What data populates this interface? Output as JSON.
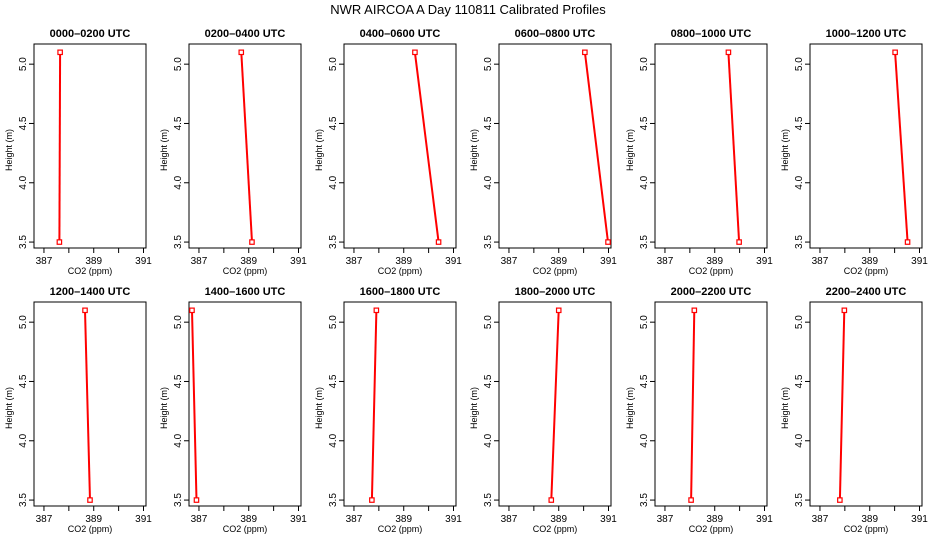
{
  "title": "NWR AIRCOA A  Day 110811  Calibrated Profiles",
  "colors": {
    "series": "#ff0000",
    "axis": "#000000",
    "background": "#ffffff"
  },
  "chart_data": [
    {
      "type": "line",
      "title": "0000–0200 UTC",
      "xlabel": "CO2 (ppm)",
      "ylabel": "Height (m)",
      "xlim": [
        386.6,
        391.1
      ],
      "ylim": [
        3.45,
        5.17
      ],
      "xticks": [
        "387",
        "389",
        "391"
      ],
      "yticks": [
        "3.5",
        "4.0",
        "4.5",
        "5.0"
      ],
      "grid": false,
      "x": [
        387.65,
        387.62
      ],
      "y": [
        5.1,
        3.5
      ]
    },
    {
      "type": "line",
      "title": "0200–0400 UTC",
      "xlabel": "CO2 (ppm)",
      "ylabel": "Height (m)",
      "xlim": [
        386.6,
        391.1
      ],
      "ylim": [
        3.45,
        5.17
      ],
      "xticks": [
        "387",
        "389",
        "391"
      ],
      "yticks": [
        "3.5",
        "4.0",
        "4.5",
        "5.0"
      ],
      "grid": false,
      "x": [
        388.7,
        389.13
      ],
      "y": [
        5.1,
        3.5
      ]
    },
    {
      "type": "line",
      "title": "0400–0600 UTC",
      "xlabel": "CO2 (ppm)",
      "ylabel": "Height (m)",
      "xlim": [
        386.6,
        391.1
      ],
      "ylim": [
        3.45,
        5.17
      ],
      "xticks": [
        "387",
        "389",
        "391"
      ],
      "yticks": [
        "3.5",
        "4.0",
        "4.5",
        "5.0"
      ],
      "grid": false,
      "x": [
        389.45,
        390.4
      ],
      "y": [
        5.1,
        3.5
      ]
    },
    {
      "type": "line",
      "title": "0600–0800 UTC",
      "xlabel": "CO2 (ppm)",
      "ylabel": "Height (m)",
      "xlim": [
        386.6,
        391.1
      ],
      "ylim": [
        3.45,
        5.17
      ],
      "xticks": [
        "387",
        "389",
        "391"
      ],
      "yticks": [
        "3.5",
        "4.0",
        "4.5",
        "5.0"
      ],
      "grid": false,
      "x": [
        390.05,
        390.98
      ],
      "y": [
        5.1,
        3.5
      ]
    },
    {
      "type": "line",
      "title": "0800–1000 UTC",
      "xlabel": "CO2 (ppm)",
      "ylabel": "Height (m)",
      "xlim": [
        386.6,
        391.1
      ],
      "ylim": [
        3.45,
        5.17
      ],
      "xticks": [
        "387",
        "389",
        "391"
      ],
      "yticks": [
        "3.5",
        "4.0",
        "4.5",
        "5.0"
      ],
      "grid": false,
      "x": [
        389.55,
        389.98
      ],
      "y": [
        5.1,
        3.5
      ]
    },
    {
      "type": "line",
      "title": "1000–1200 UTC",
      "xlabel": "CO2 (ppm)",
      "ylabel": "Height (m)",
      "xlim": [
        386.6,
        391.1
      ],
      "ylim": [
        3.45,
        5.17
      ],
      "xticks": [
        "387",
        "389",
        "391"
      ],
      "yticks": [
        "3.5",
        "4.0",
        "4.5",
        "5.0"
      ],
      "grid": false,
      "x": [
        390.02,
        390.52
      ],
      "y": [
        5.1,
        3.5
      ]
    },
    {
      "type": "line",
      "title": "1200–1400 UTC",
      "xlabel": "CO2 (ppm)",
      "ylabel": "Height (m)",
      "xlim": [
        386.6,
        391.1
      ],
      "ylim": [
        3.45,
        5.17
      ],
      "xticks": [
        "387",
        "389",
        "391"
      ],
      "yticks": [
        "3.5",
        "4.0",
        "4.5",
        "5.0"
      ],
      "grid": false,
      "x": [
        388.65,
        388.85
      ],
      "y": [
        5.1,
        3.5
      ]
    },
    {
      "type": "line",
      "title": "1400–1600 UTC",
      "xlabel": "CO2 (ppm)",
      "ylabel": "Height (m)",
      "xlim": [
        386.6,
        391.1
      ],
      "ylim": [
        3.45,
        5.17
      ],
      "xticks": [
        "387",
        "389",
        "391"
      ],
      "yticks": [
        "3.5",
        "4.0",
        "4.5",
        "5.0"
      ],
      "grid": false,
      "x": [
        386.72,
        386.9
      ],
      "y": [
        5.1,
        3.5
      ]
    },
    {
      "type": "line",
      "title": "1600–1800 UTC",
      "xlabel": "CO2 (ppm)",
      "ylabel": "Height (m)",
      "xlim": [
        386.6,
        391.1
      ],
      "ylim": [
        3.45,
        5.17
      ],
      "xticks": [
        "387",
        "389",
        "391"
      ],
      "yticks": [
        "3.5",
        "4.0",
        "4.5",
        "5.0"
      ],
      "grid": false,
      "x": [
        387.9,
        387.72
      ],
      "y": [
        5.1,
        3.5
      ]
    },
    {
      "type": "line",
      "title": "1800–2000 UTC",
      "xlabel": "CO2 (ppm)",
      "ylabel": "Height (m)",
      "xlim": [
        386.6,
        391.1
      ],
      "ylim": [
        3.45,
        5.17
      ],
      "xticks": [
        "387",
        "389",
        "391"
      ],
      "yticks": [
        "3.5",
        "4.0",
        "4.5",
        "5.0"
      ],
      "grid": false,
      "x": [
        389.0,
        388.7
      ],
      "y": [
        5.1,
        3.5
      ]
    },
    {
      "type": "line",
      "title": "2000–2200 UTC",
      "xlabel": "CO2 (ppm)",
      "ylabel": "Height (m)",
      "xlim": [
        386.6,
        391.1
      ],
      "ylim": [
        3.45,
        5.17
      ],
      "xticks": [
        "387",
        "389",
        "391"
      ],
      "yticks": [
        "3.5",
        "4.0",
        "4.5",
        "5.0"
      ],
      "grid": false,
      "x": [
        388.18,
        388.05
      ],
      "y": [
        5.1,
        3.5
      ]
    },
    {
      "type": "line",
      "title": "2200–2400 UTC",
      "xlabel": "CO2 (ppm)",
      "ylabel": "Height (m)",
      "xlim": [
        386.6,
        391.1
      ],
      "ylim": [
        3.45,
        5.17
      ],
      "xticks": [
        "387",
        "389",
        "391"
      ],
      "yticks": [
        "3.5",
        "4.0",
        "4.5",
        "5.0"
      ],
      "grid": false,
      "x": [
        387.98,
        387.8
      ],
      "y": [
        5.1,
        3.5
      ]
    }
  ]
}
